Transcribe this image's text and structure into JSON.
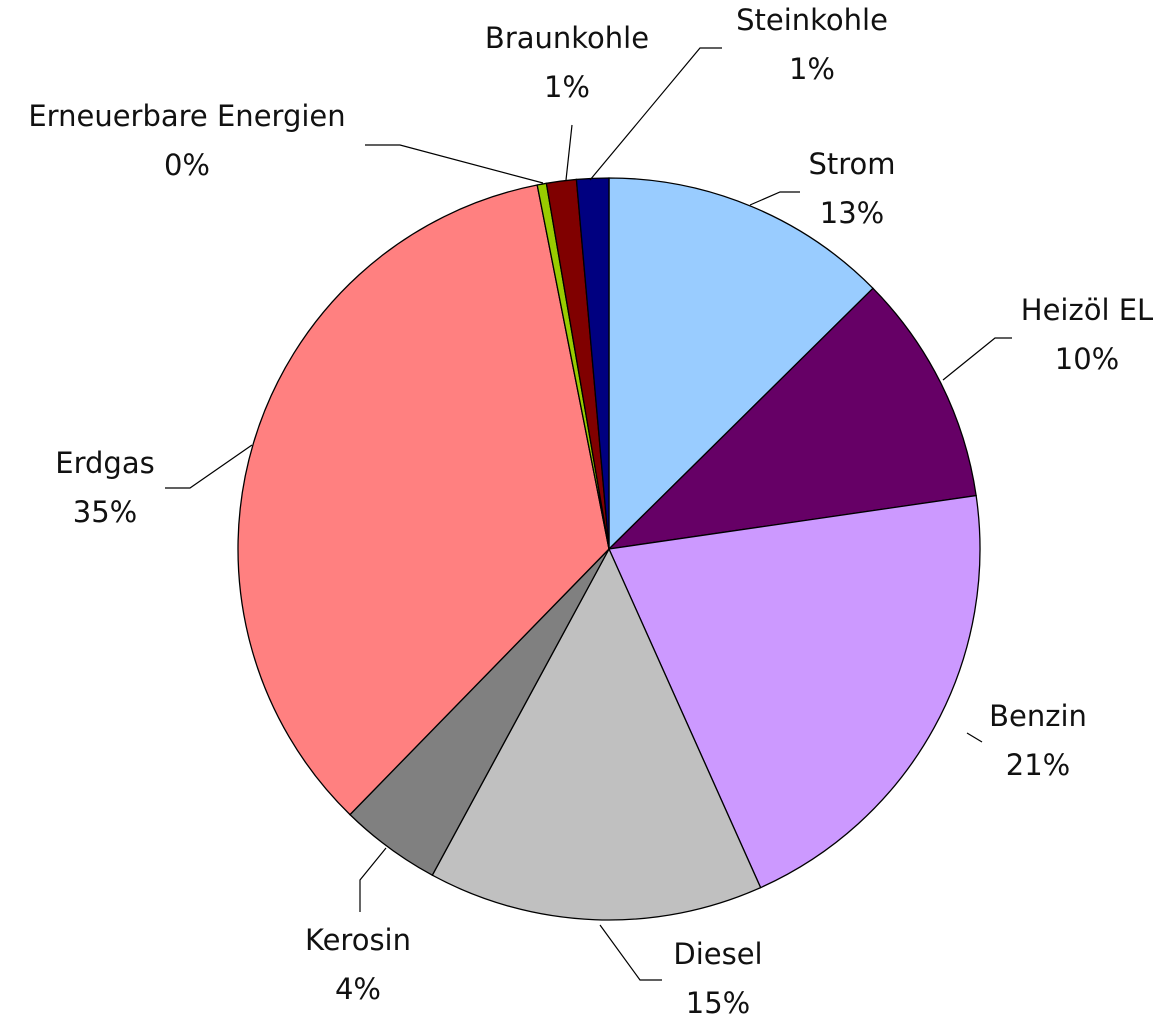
{
  "chart_data": {
    "type": "pie",
    "categories": [
      "Strom",
      "Heizöl EL",
      "Benzin",
      "Diesel",
      "Kerosin",
      "Erdgas",
      "Erneuerbare Energien",
      "Braunkohle",
      "Steinkohle"
    ],
    "values": [
      12.6,
      10.1,
      20.6,
      14.6,
      4.4,
      34.6,
      0.4,
      1.3,
      1.4
    ],
    "value_labels": [
      "13%",
      "10%",
      "21%",
      "15%",
      "4%",
      "35%",
      "0%",
      "1%",
      "1%"
    ],
    "colors": [
      "#99ccff",
      "#660066",
      "#cc99ff",
      "#c0c0c0",
      "#808080",
      "#ff8080",
      "#99cc00",
      "#800000",
      "#000080"
    ]
  }
}
